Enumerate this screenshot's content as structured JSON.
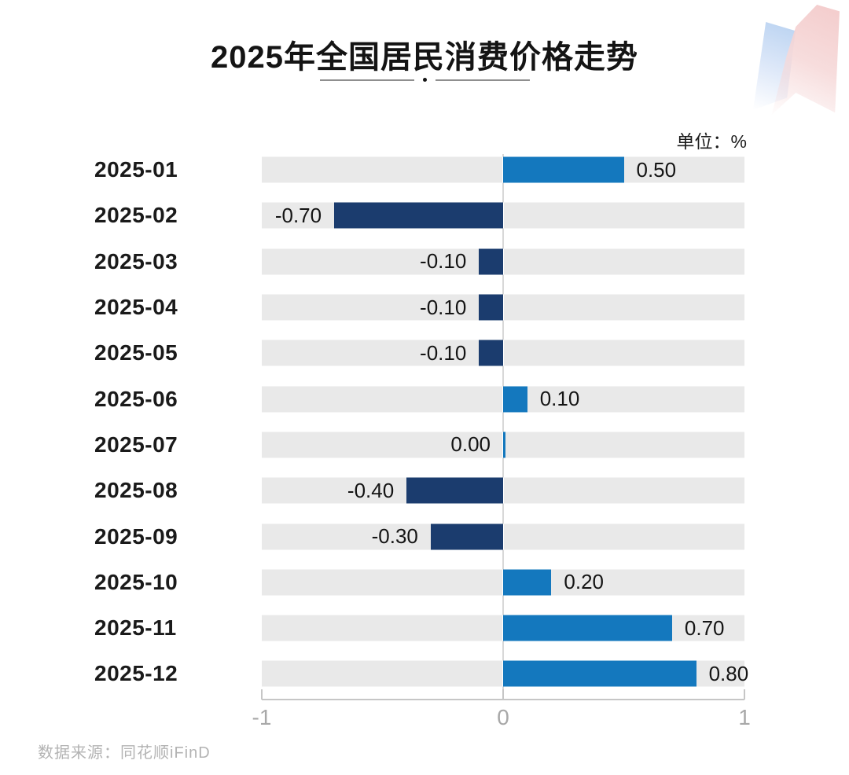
{
  "title": "2025年全国居民消费价格走势",
  "unit_label": "单位：%",
  "source": "数据来源：同花顺iFinD",
  "colors": {
    "positive": "#1478be",
    "negative": "#1b3c6e",
    "track": "#e9e9e9",
    "zero_line": "#d8d8d8",
    "axis_line": "#c6c6c6",
    "axis_label": "#a8a8a8",
    "title": "#141414",
    "category_label": "#1a1a1a",
    "value_label": "#141414",
    "source": "#b3b3b3",
    "logo_blue": "#b9d2f1",
    "logo_pink": "#f2c6c6"
  },
  "chart_data": {
    "type": "bar",
    "orientation": "horizontal",
    "title": "2025年全国居民消费价格走势",
    "unit": "%",
    "categories": [
      "2025-01",
      "2025-02",
      "2025-03",
      "2025-04",
      "2025-05",
      "2025-06",
      "2025-07",
      "2025-08",
      "2025-09",
      "2025-10",
      "2025-11",
      "2025-12"
    ],
    "values": [
      0.5,
      -0.7,
      -0.1,
      -0.1,
      -0.1,
      0.1,
      0.0,
      -0.4,
      -0.3,
      0.2,
      0.7,
      0.8
    ],
    "value_labels": [
      "0.50",
      "-0.70",
      "-0.10",
      "-0.10",
      "-0.10",
      "0.10",
      "0.00",
      "-0.40",
      "-0.30",
      "0.20",
      "0.70",
      "0.80"
    ],
    "xlim": [
      -1,
      1
    ],
    "x_ticks": [
      -1,
      0,
      1
    ],
    "x_tick_labels": [
      "-1",
      "0",
      "1"
    ],
    "grid": false,
    "legend": false,
    "track_background": true,
    "bar_colors": {
      "positive": "#1478be",
      "negative": "#1b3c6e"
    }
  }
}
